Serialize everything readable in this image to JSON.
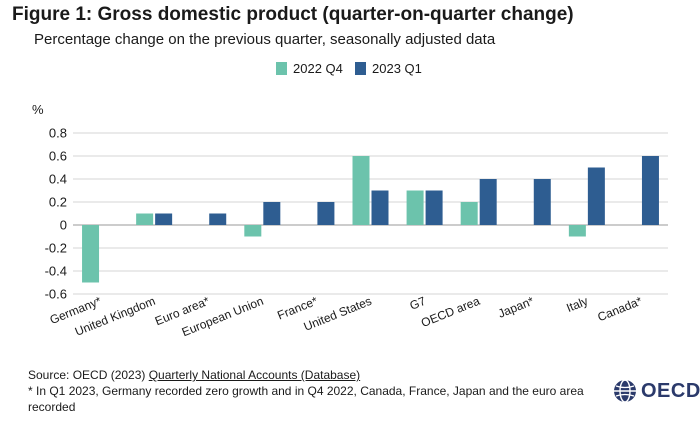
{
  "header": {
    "title": "Figure 1: Gross domestic product (quarter-on-quarter change)",
    "subtitle": "Percentage change on the previous quarter, seasonally adjusted data"
  },
  "colors": {
    "series_q4": "#6cc3ac",
    "series_q1": "#2e5d91",
    "grid": "#d6d6d6",
    "text": "#1a1a1a",
    "logo": "#2b3a6b"
  },
  "chart_data": {
    "type": "bar",
    "ylabel": "%",
    "xlabel": "",
    "ylim": [
      -0.6,
      0.8
    ],
    "yticks": [
      "0.8",
      "0.6",
      "0.4",
      "0.2",
      "0",
      "-0.2",
      "-0.4",
      "-0.6"
    ],
    "ytick_values": [
      0.8,
      0.6,
      0.4,
      0.2,
      0,
      -0.2,
      -0.4,
      -0.6
    ],
    "grid": true,
    "legend_position": "top-center",
    "categories": [
      "Germany*",
      "United Kingdom",
      "Euro area*",
      "European Union",
      "France*",
      "United States",
      "G7",
      "OECD area",
      "Japan*",
      "Italy",
      "Canada*"
    ],
    "series": [
      {
        "name": "2022 Q4",
        "values": [
          -0.5,
          0.1,
          0.0,
          -0.1,
          0.0,
          0.6,
          0.3,
          0.2,
          0.0,
          -0.1,
          0.0
        ]
      },
      {
        "name": "2023 Q1",
        "values": [
          0.0,
          0.1,
          0.1,
          0.2,
          0.2,
          0.3,
          0.3,
          0.4,
          0.4,
          0.5,
          0.6
        ]
      }
    ]
  },
  "footer": {
    "source_prefix": "Source: OECD (2023) ",
    "source_link": "Quarterly National Accounts (Database)",
    "footnote": "* In Q1 2023, Germany recorded zero growth and in Q4 2022, Canada, France, Japan and the euro area recorded",
    "logo_text": "OECD",
    "logo_icon": "oecd-globe-icon"
  }
}
